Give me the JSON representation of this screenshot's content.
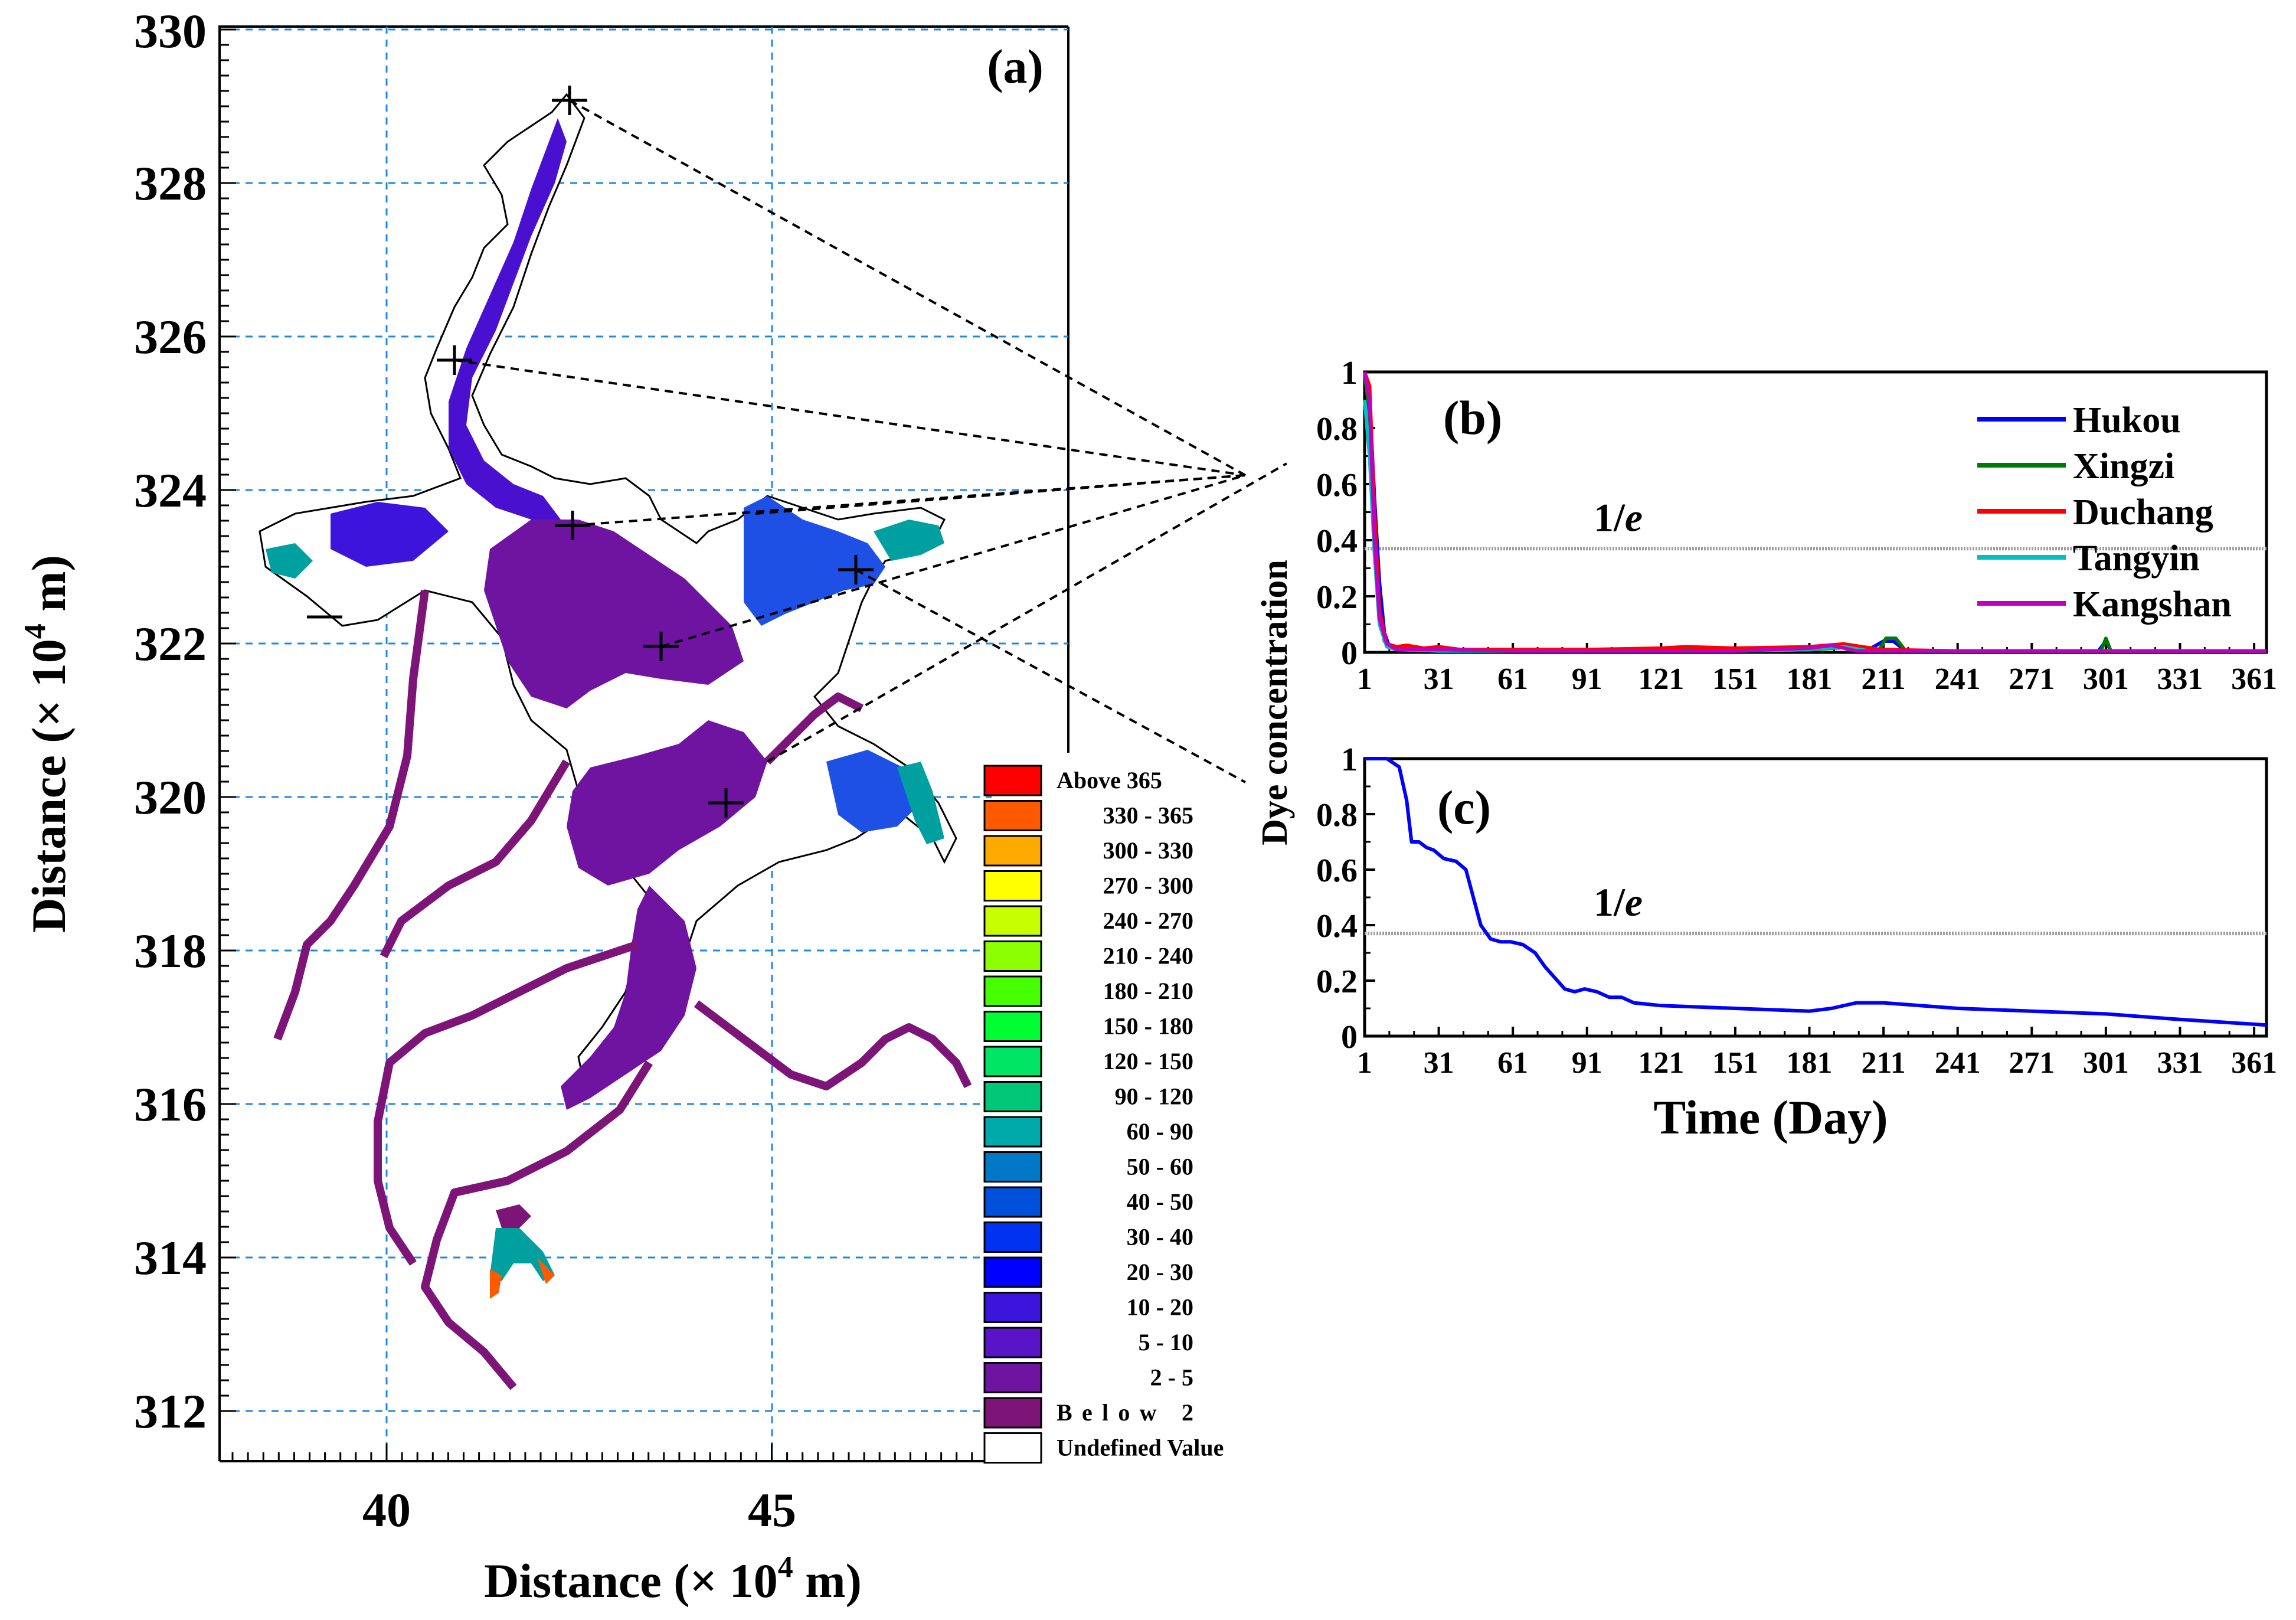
{
  "panel_a": {
    "label": "(a)",
    "x_ticks": [
      "40",
      "45"
    ],
    "y_ticks": [
      "312",
      "314",
      "316",
      "318",
      "320",
      "322",
      "324",
      "326",
      "328",
      "330"
    ],
    "xlabel_main": "Distance (× 10",
    "xlabel_sup": "4",
    "xlabel_end": " m)",
    "ylabel_main": "Distance (× 10",
    "ylabel_sup": "4",
    "ylabel_end": " m)"
  },
  "legend": {
    "items": [
      {
        "label": "Above 365",
        "color": "#ff0000"
      },
      {
        "label": "330 - 365",
        "color": "#ff5a00"
      },
      {
        "label": "300 - 330",
        "color": "#ffaa00"
      },
      {
        "label": "270 - 300",
        "color": "#ffff00"
      },
      {
        "label": "240 - 270",
        "color": "#c8ff00"
      },
      {
        "label": "210 - 240",
        "color": "#8cff00"
      },
      {
        "label": "180 - 210",
        "color": "#46ff00"
      },
      {
        "label": "150 - 180",
        "color": "#00ff32"
      },
      {
        "label": "120 - 150",
        "color": "#00e664"
      },
      {
        "label": "90 - 120",
        "color": "#00c878"
      },
      {
        "label": "60 - 90",
        "color": "#00aaaa"
      },
      {
        "label": "50 - 60",
        "color": "#0078c8"
      },
      {
        "label": "40 - 50",
        "color": "#0050dc"
      },
      {
        "label": "30 - 40",
        "color": "#0032f0"
      },
      {
        "label": "20 - 30",
        "color": "#0000ff"
      },
      {
        "label": "10 - 20",
        "color": "#3c14dc"
      },
      {
        "label": "5 - 10",
        "color": "#5a14c8"
      },
      {
        "label": "2 - 5",
        "color": "#6e14a0"
      },
      {
        "label": "Below 2",
        "color": "#7d1478"
      },
      {
        "label": "Undefined Value",
        "color": "#ffffff"
      }
    ]
  },
  "chart_data": [
    {
      "type": "line",
      "panel": "(b)",
      "xlim": [
        1,
        366
      ],
      "ylim": [
        0,
        1
      ],
      "x_ticks": [
        1,
        31,
        61,
        91,
        121,
        151,
        181,
        211,
        241,
        271,
        301,
        331,
        361
      ],
      "y_ticks": [
        0,
        0.2,
        0.4,
        0.6,
        0.8,
        1
      ],
      "y_tick_labels": [
        "0",
        "0.2",
        "0.4",
        "0.6",
        "0.8",
        "1"
      ],
      "annotation": "1/e",
      "threshold": 0.37,
      "series": [
        {
          "name": "Hukou",
          "color": "#0000ff",
          "x": [
            1,
            3,
            5,
            7,
            9,
            11,
            14,
            20,
            31,
            61,
            91,
            121,
            151,
            181,
            195,
            205,
            211,
            215,
            220,
            241,
            271,
            298,
            301,
            303,
            331,
            361,
            366
          ],
          "y": [
            0.98,
            0.9,
            0.55,
            0.25,
            0.07,
            0.02,
            0.01,
            0.01,
            0.01,
            0.005,
            0.005,
            0.005,
            0.008,
            0.01,
            0.02,
            0.01,
            0.04,
            0.04,
            0.005,
            0.005,
            0.005,
            0.005,
            0.04,
            0.005,
            0.005,
            0.005,
            0.005
          ]
        },
        {
          "name": "Xingzi",
          "color": "#007a00",
          "x": [
            1,
            3,
            5,
            7,
            9,
            12,
            20,
            31,
            61,
            91,
            121,
            151,
            181,
            200,
            209,
            212,
            216,
            220,
            241,
            271,
            299,
            301,
            303,
            331,
            366
          ],
          "y": [
            1.0,
            0.85,
            0.45,
            0.15,
            0.04,
            0.02,
            0.01,
            0.01,
            0.005,
            0.005,
            0.008,
            0.01,
            0.01,
            0.02,
            0.005,
            0.05,
            0.05,
            0.005,
            0.005,
            0.005,
            0.005,
            0.05,
            0.005,
            0.005,
            0.005
          ]
        },
        {
          "name": "Duchang",
          "color": "#ff0000",
          "x": [
            1,
            3,
            5,
            7,
            10,
            14,
            18,
            25,
            31,
            40,
            61,
            91,
            121,
            131,
            151,
            181,
            195,
            210,
            241,
            271,
            301,
            331,
            366
          ],
          "y": [
            1.0,
            0.95,
            0.5,
            0.15,
            0.03,
            0.02,
            0.025,
            0.015,
            0.02,
            0.01,
            0.01,
            0.01,
            0.015,
            0.02,
            0.015,
            0.02,
            0.03,
            0.01,
            0.005,
            0.005,
            0.005,
            0.005,
            0.005
          ]
        },
        {
          "name": "Tangyin",
          "color": "#00bfbf",
          "x": [
            1,
            3,
            5,
            7,
            10,
            14,
            31,
            61,
            91,
            121,
            151,
            181,
            195,
            205,
            241,
            271,
            301,
            331,
            366
          ],
          "y": [
            0.9,
            0.7,
            0.35,
            0.1,
            0.02,
            0.01,
            0.005,
            0.005,
            0.005,
            0.005,
            0.005,
            0.01,
            0.02,
            0.005,
            0.005,
            0.005,
            0.005,
            0.005,
            0.005
          ]
        },
        {
          "name": "Kangshan",
          "color": "#bf00bf",
          "x": [
            1,
            3,
            5,
            7,
            10,
            14,
            31,
            61,
            91,
            121,
            151,
            181,
            190,
            200,
            241,
            271,
            301,
            331,
            366
          ],
          "y": [
            1.0,
            0.9,
            0.4,
            0.12,
            0.03,
            0.01,
            0.01,
            0.005,
            0.005,
            0.005,
            0.005,
            0.015,
            0.025,
            0.005,
            0.005,
            0.005,
            0.005,
            0.005,
            0.005
          ]
        }
      ]
    },
    {
      "type": "line",
      "panel": "(c)",
      "ylabel": "Dye concentration",
      "xlabel": "Time (Day)",
      "xlim": [
        1,
        366
      ],
      "ylim": [
        0,
        1
      ],
      "x_ticks": [
        1,
        31,
        61,
        91,
        121,
        151,
        181,
        211,
        241,
        271,
        301,
        331,
        361
      ],
      "y_ticks": [
        0,
        0.2,
        0.4,
        0.6,
        0.8,
        1
      ],
      "y_tick_labels": [
        "0",
        "0.2",
        "0.4",
        "0.6",
        "0.8",
        "1"
      ],
      "annotation": "1/e",
      "threshold": 0.37,
      "series": [
        {
          "color": "#0000ff",
          "x": [
            1,
            10,
            15,
            18,
            20,
            23,
            26,
            29,
            33,
            38,
            42,
            45,
            48,
            52,
            56,
            60,
            65,
            70,
            74,
            78,
            82,
            86,
            90,
            95,
            100,
            105,
            110,
            121,
            151,
            181,
            190,
            200,
            211,
            241,
            271,
            301,
            331,
            366
          ],
          "y": [
            1.0,
            1.0,
            0.97,
            0.85,
            0.7,
            0.7,
            0.68,
            0.67,
            0.64,
            0.63,
            0.6,
            0.5,
            0.4,
            0.35,
            0.34,
            0.34,
            0.33,
            0.3,
            0.25,
            0.21,
            0.17,
            0.16,
            0.17,
            0.16,
            0.14,
            0.14,
            0.12,
            0.11,
            0.1,
            0.09,
            0.1,
            0.12,
            0.12,
            0.1,
            0.09,
            0.08,
            0.06,
            0.04
          ]
        }
      ]
    }
  ]
}
